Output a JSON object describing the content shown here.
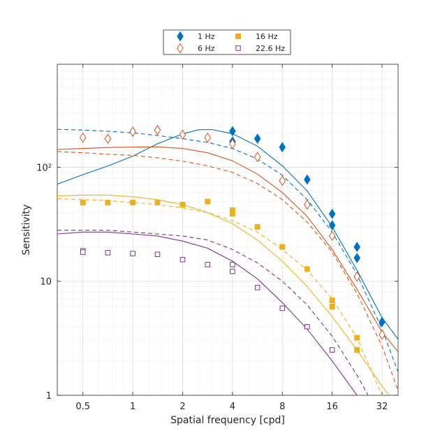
{
  "chart_data": {
    "type": "scatter",
    "title": "",
    "xlabel": "Spatial frequency [cpd]",
    "ylabel": "Sensitivity",
    "xscale": "log2",
    "yscale": "log10",
    "xlim": [
      0.35,
      40
    ],
    "ylim": [
      1,
      800
    ],
    "xticks": [
      0.5,
      1,
      2,
      4,
      8,
      16,
      32
    ],
    "xtick_labels": [
      "0.5",
      "1",
      "2",
      "4",
      "8",
      "16",
      "32"
    ],
    "yticks": [
      1,
      10,
      100
    ],
    "ytick_labels": [
      "1",
      "10",
      "10²"
    ],
    "grid": true,
    "legend_position": "top-center",
    "series": [
      {
        "name": "1 Hz",
        "color": "#0072BD",
        "marker": "filled-diamond",
        "points": [
          [
            4,
            207
          ],
          [
            4,
            168
          ],
          [
            5.66,
            178
          ],
          [
            8,
            150
          ],
          [
            11.3,
            78
          ],
          [
            16,
            39
          ],
          [
            16,
            31
          ],
          [
            22.6,
            20
          ],
          [
            22.6,
            16
          ],
          [
            32,
            4.4
          ]
        ],
        "fit_solid": [
          [
            0.35,
            71
          ],
          [
            0.5,
            86
          ],
          [
            0.7,
            102
          ],
          [
            1,
            125
          ],
          [
            1.4,
            160
          ],
          [
            2,
            196
          ],
          [
            2.5,
            213
          ],
          [
            3,
            214
          ],
          [
            4,
            197
          ],
          [
            5.66,
            153
          ],
          [
            8,
            103
          ],
          [
            11.3,
            62
          ],
          [
            16,
            30
          ],
          [
            22.6,
            12.5
          ],
          [
            32,
            4.8
          ],
          [
            40,
            3.1
          ]
        ],
        "fit_dashed": [
          [
            0.35,
            215
          ],
          [
            0.5,
            212
          ],
          [
            0.7,
            207
          ],
          [
            1,
            200
          ],
          [
            1.4,
            190
          ],
          [
            2,
            178
          ],
          [
            2.83,
            165
          ],
          [
            4,
            146
          ],
          [
            5.66,
            118
          ],
          [
            8,
            85
          ],
          [
            11.3,
            52
          ],
          [
            16,
            27
          ],
          [
            22.6,
            11.5
          ],
          [
            32,
            3.8
          ],
          [
            40,
            1.6
          ]
        ]
      },
      {
        "name": "6 Hz",
        "color": "#D95319",
        "marker": "open-diamond",
        "points": [
          [
            0.5,
            182
          ],
          [
            0.707,
            178
          ],
          [
            1,
            205
          ],
          [
            1.41,
            212
          ],
          [
            2,
            193
          ],
          [
            2.83,
            182
          ],
          [
            4,
            160
          ],
          [
            5.66,
            123
          ],
          [
            8,
            76
          ],
          [
            11.3,
            47
          ],
          [
            16,
            25
          ],
          [
            22.6,
            11
          ],
          [
            32,
            3.4
          ]
        ],
        "fit_solid": [
          [
            0.35,
            143
          ],
          [
            0.5,
            146
          ],
          [
            0.7,
            149
          ],
          [
            1,
            150
          ],
          [
            1.4,
            151
          ],
          [
            2,
            146
          ],
          [
            2.83,
            134
          ],
          [
            4,
            114
          ],
          [
            5.66,
            87
          ],
          [
            8,
            60
          ],
          [
            11.3,
            37
          ],
          [
            16,
            19
          ],
          [
            22.6,
            8.5
          ],
          [
            32,
            3.6
          ],
          [
            40,
            2.4
          ]
        ],
        "fit_dashed": [
          [
            0.35,
            137
          ],
          [
            0.5,
            134
          ],
          [
            0.7,
            130
          ],
          [
            1,
            127
          ],
          [
            1.4,
            121
          ],
          [
            2,
            113
          ],
          [
            2.83,
            103
          ],
          [
            4,
            90
          ],
          [
            5.66,
            72
          ],
          [
            8,
            52
          ],
          [
            11.3,
            33
          ],
          [
            16,
            18
          ],
          [
            22.6,
            7.8
          ],
          [
            32,
            2.7
          ],
          [
            40,
            1.1
          ]
        ]
      },
      {
        "name": "16 Hz",
        "color": "#EDB120",
        "marker": "filled-square",
        "points": [
          [
            0.5,
            49
          ],
          [
            0.707,
            49
          ],
          [
            1,
            49
          ],
          [
            1.41,
            49
          ],
          [
            2,
            47
          ],
          [
            2.83,
            50
          ],
          [
            4,
            42
          ],
          [
            4,
            39
          ],
          [
            5.66,
            30
          ],
          [
            8,
            20
          ],
          [
            11.3,
            12.8
          ],
          [
            16,
            6.8
          ],
          [
            16,
            6.0
          ],
          [
            22.6,
            3.2
          ],
          [
            22.6,
            2.5
          ]
        ],
        "fit_solid": [
          [
            0.35,
            56
          ],
          [
            0.5,
            57
          ],
          [
            0.7,
            57
          ],
          [
            1,
            55
          ],
          [
            1.4,
            52
          ],
          [
            2,
            47
          ],
          [
            2.83,
            40
          ],
          [
            4,
            32
          ],
          [
            5.66,
            23
          ],
          [
            8,
            15
          ],
          [
            11.3,
            9
          ],
          [
            16,
            4.9
          ],
          [
            22.6,
            2.5
          ],
          [
            32,
            1.2
          ],
          [
            40,
            0.8
          ]
        ],
        "fit_dashed": [
          [
            0.35,
            53
          ],
          [
            0.5,
            52
          ],
          [
            0.7,
            51
          ],
          [
            1,
            49
          ],
          [
            1.4,
            47
          ],
          [
            2,
            44
          ],
          [
            2.83,
            40
          ],
          [
            4,
            34
          ],
          [
            5.66,
            27
          ],
          [
            8,
            19
          ],
          [
            11.3,
            12.5
          ],
          [
            16,
            7
          ],
          [
            22.6,
            3.2
          ],
          [
            32,
            1.0
          ],
          [
            40,
            0.45
          ]
        ]
      },
      {
        "name": "22.6 Hz",
        "color": "#7E2F8E",
        "marker": "open-square",
        "points": [
          [
            0.5,
            18.5
          ],
          [
            0.5,
            18
          ],
          [
            0.707,
            17.8
          ],
          [
            1,
            17.5
          ],
          [
            1.41,
            17.2
          ],
          [
            2,
            15.5
          ],
          [
            2.83,
            14
          ],
          [
            4,
            14
          ],
          [
            4,
            12.2
          ],
          [
            5.66,
            8.8
          ],
          [
            8,
            5.8
          ],
          [
            11.3,
            4.0
          ],
          [
            16,
            2.5
          ]
        ],
        "fit_solid": [
          [
            0.35,
            26
          ],
          [
            0.5,
            27
          ],
          [
            0.7,
            27
          ],
          [
            1,
            26
          ],
          [
            1.4,
            25
          ],
          [
            2,
            22.5
          ],
          [
            2.83,
            19.5
          ],
          [
            4,
            15
          ],
          [
            5.66,
            10.5
          ],
          [
            8,
            6.5
          ],
          [
            11.3,
            3.8
          ],
          [
            16,
            2.0
          ],
          [
            22.6,
            1.0
          ],
          [
            32,
            0.5
          ]
        ],
        "fit_dashed": [
          [
            0.35,
            28
          ],
          [
            0.5,
            28
          ],
          [
            0.7,
            28
          ],
          [
            1,
            27
          ],
          [
            1.4,
            26
          ],
          [
            2,
            25
          ],
          [
            2.83,
            23
          ],
          [
            4,
            19
          ],
          [
            5.66,
            14.5
          ],
          [
            8,
            10
          ],
          [
            11.3,
            6.2
          ],
          [
            16,
            3.3
          ],
          [
            22.6,
            1.5
          ],
          [
            32,
            0.6
          ]
        ]
      }
    ]
  }
}
